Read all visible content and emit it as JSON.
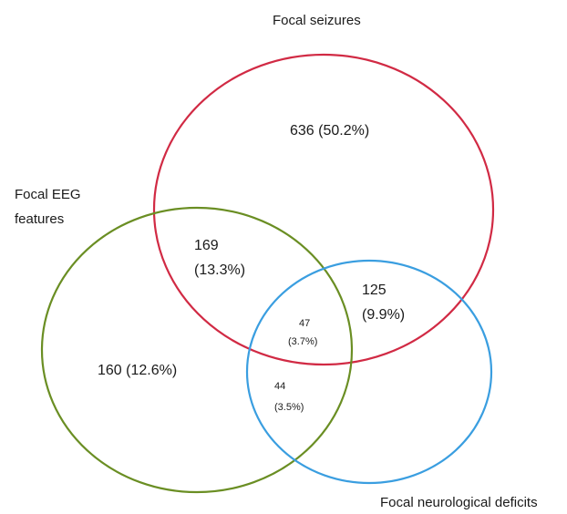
{
  "sets": [
    {
      "id": "seizures",
      "label_lines": [
        "Focal seizures"
      ],
      "color": "#d12a44"
    },
    {
      "id": "eeg",
      "label_lines": [
        "Focal EEG",
        "features"
      ],
      "color": "#6a8e23"
    },
    {
      "id": "neuro",
      "label_lines": [
        "Focal neurological deficits"
      ],
      "color": "#3a9ee0"
    }
  ],
  "regions": [
    {
      "id": "seizures-only",
      "sets": [
        "seizures"
      ],
      "lines": [
        "636 (50.2%)"
      ],
      "count": 636,
      "percent": 50.2
    },
    {
      "id": "seizures-eeg",
      "sets": [
        "seizures",
        "eeg"
      ],
      "lines": [
        "169",
        "(13.3%)"
      ],
      "count": 169,
      "percent": 13.3
    },
    {
      "id": "seizures-neuro",
      "sets": [
        "seizures",
        "neuro"
      ],
      "lines": [
        "125",
        "(9.9%)"
      ],
      "count": 125,
      "percent": 9.9
    },
    {
      "id": "all-three",
      "sets": [
        "seizures",
        "eeg",
        "neuro"
      ],
      "lines": [
        "47",
        "(3.7%)"
      ],
      "count": 47,
      "percent": 3.7
    },
    {
      "id": "eeg-only",
      "sets": [
        "eeg"
      ],
      "lines": [
        "160 (12.6%)"
      ],
      "count": 160,
      "percent": 12.6
    },
    {
      "id": "eeg-neuro",
      "sets": [
        "eeg",
        "neuro"
      ],
      "lines": [
        "44",
        "(3.5%)"
      ],
      "count": 44,
      "percent": 3.5
    }
  ]
}
